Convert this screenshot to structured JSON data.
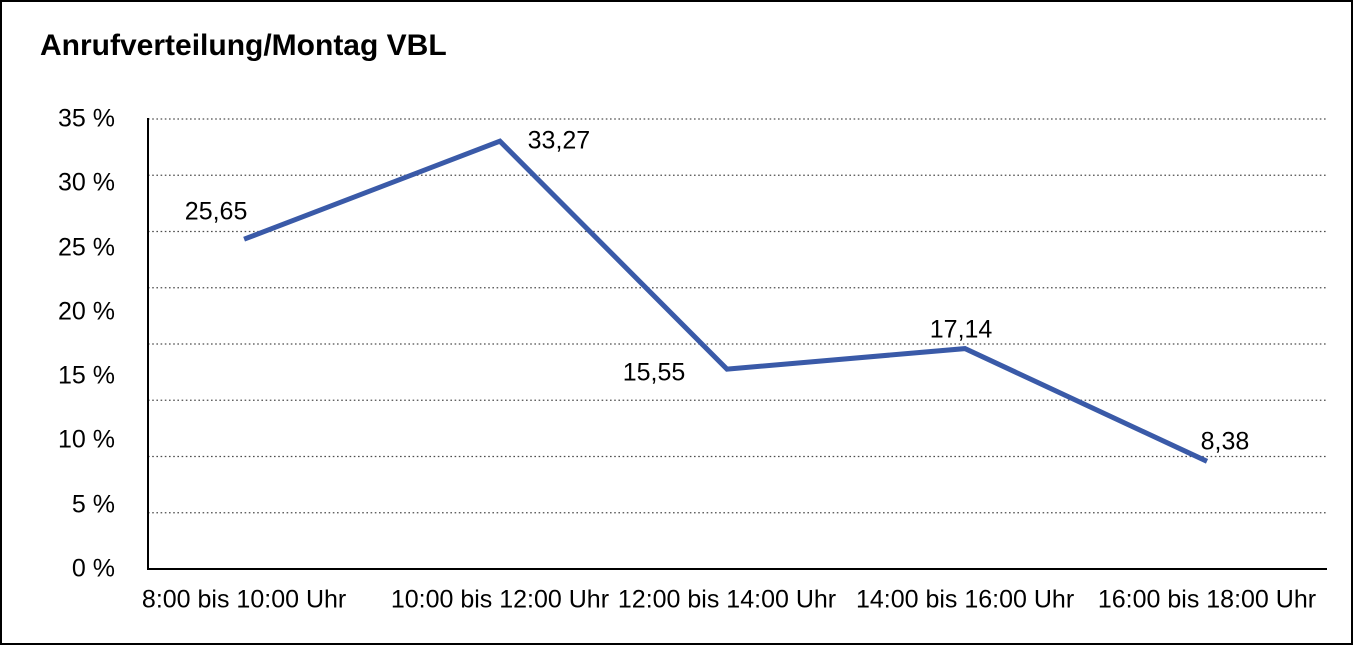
{
  "title": "Anrufverteilung/Montag VBL",
  "colors": {
    "line": "#3a5aa8",
    "axis": "#000000",
    "gridline": "#4d4d4d",
    "frame_border": "#000000",
    "background": "#ffffff",
    "text": "#000000"
  },
  "chart_data": {
    "type": "line",
    "title": "Anrufverteilung/Montag VBL",
    "categories": [
      "8:00 bis 10:00 Uhr",
      "10:00 bis 12:00 Uhr",
      "12:00 bis 14:00 Uhr",
      "14:00 bis 16:00 Uhr",
      "16:00 bis 18:00 Uhr"
    ],
    "values": [
      25.65,
      33.27,
      15.55,
      17.14,
      8.38
    ],
    "value_labels": [
      "25,65",
      "33,27",
      "15,55",
      "17,14",
      "8,38"
    ],
    "unit": "%",
    "decimal_separator": ",",
    "y_ticks": [
      35,
      30,
      25,
      20,
      15,
      10,
      5,
      0
    ],
    "y_tick_labels": [
      "35 %",
      "30 %",
      "25 %",
      "20 %",
      "15 %",
      "10 %",
      "5 %",
      "0 %"
    ],
    "ylim": [
      0,
      35
    ],
    "xlabel": "",
    "ylabel": "",
    "legend": "none",
    "grid": "horizontal-dotted",
    "gridline_count": 9,
    "markers": "none"
  }
}
